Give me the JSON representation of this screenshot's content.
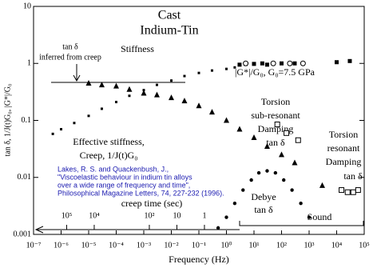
{
  "chart_data": {
    "type": "scatter",
    "title": [
      "Cast",
      "Indium-Tin"
    ],
    "xlabel": "Frequency (Hz)",
    "ylabel": "tan δ, 1/J(t)G₀, |G*|/G₀",
    "xscale": "log",
    "yscale": "log",
    "xlim": [
      1e-07,
      100000
    ],
    "ylim": [
      0.001,
      10
    ],
    "xticks": [
      {
        "value": 1e-07,
        "label": "10⁻⁷"
      },
      {
        "value": 1e-06,
        "label": "10⁻⁶"
      },
      {
        "value": 1e-05,
        "label": "10⁻⁵"
      },
      {
        "value": 0.0001,
        "label": "10⁻⁴"
      },
      {
        "value": 0.001,
        "label": "10⁻³"
      },
      {
        "value": 0.01,
        "label": "10⁻²"
      },
      {
        "value": 0.1,
        "label": "10⁻¹"
      },
      {
        "value": 1,
        "label": "10⁰"
      },
      {
        "value": 10,
        "label": "10¹"
      },
      {
        "value": 100,
        "label": "10²"
      },
      {
        "value": 1000,
        "label": "10³"
      },
      {
        "value": 10000,
        "label": "10⁴"
      },
      {
        "value": 100000,
        "label": "10⁵"
      }
    ],
    "yticks": [
      0.001,
      0.01,
      0.1,
      1,
      10
    ],
    "creep_time_axis": {
      "label": "creep time (sec)",
      "ticks": [
        {
          "value": 100000,
          "label": "10⁵"
        },
        {
          "value": 10000,
          "label": "10⁴"
        },
        {
          "value": 100,
          "label": "10²"
        },
        10,
        1
      ]
    },
    "annotations": [
      "tan δ",
      "inferred from creep",
      "Stiffness",
      "|G*|/G₀, G₀=7.5 GPa",
      "Torsion",
      "sub-resonant",
      "Damping",
      "tan δ",
      "Torsion",
      "resonant",
      "Damping",
      "tan δ",
      "Effective stiffness,",
      "Creep, 1/J(t)G₀",
      "Debye",
      "tan δ",
      "Sound"
    ],
    "citation": [
      "Lakes, R. S. and Quackenbush, J.,",
      "\"Viscoelastic behaviour in indium tin alloys",
      "over a wide range of frequency and time\",",
      "Philosophical Magazine Letters, 74, 227-232 (1996)."
    ],
    "series": [
      {
        "marker": "square",
        "size": 3,
        "color": "#000000",
        "x": [
          5e-07,
          1e-06,
          3e-06,
          1e-05,
          3e-05,
          0.0001,
          0.0003,
          0.001,
          0.003,
          0.01,
          0.03,
          0.1,
          0.3,
          1,
          2
        ],
        "values": [
          0.058,
          0.07,
          0.09,
          0.12,
          0.16,
          0.21,
          0.27,
          0.34,
          0.42,
          0.5,
          0.6,
          0.68,
          0.75,
          0.8,
          0.85
        ]
      },
      {
        "marker": "square",
        "size": 5,
        "color": "#000000",
        "x": [
          3,
          5,
          10,
          20,
          30,
          100,
          300,
          10000,
          30000
        ],
        "values": [
          0.95,
          0.98,
          0.98,
          1,
          0.95,
          1,
          1,
          1.05,
          1.1
        ]
      },
      {
        "marker": "circle",
        "size": 5,
        "color": "#000000",
        "x": [
          5,
          50,
          200,
          600
        ],
        "values": [
          1,
          1,
          1,
          1
        ]
      },
      {
        "marker": "triangle",
        "size": 6,
        "color": "#000000",
        "x": [
          1e-05,
          3e-05,
          0.0001,
          0.0003,
          0.001,
          0.003,
          0.01,
          0.03,
          0.1,
          0.3,
          1,
          3,
          10,
          30,
          100,
          300,
          3000
        ],
        "values": [
          0.45,
          0.42,
          0.4,
          0.35,
          0.3,
          0.28,
          0.25,
          0.22,
          0.18,
          0.14,
          0.1,
          0.07,
          0.05,
          0.035,
          0.025,
          0.018,
          0.0072
        ]
      },
      {
        "marker": "open-square",
        "size": 6,
        "color": "#000000",
        "x": [
          70,
          150,
          400
        ],
        "values": [
          0.085,
          0.06,
          0.045
        ]
      },
      {
        "marker": "open-square",
        "size": 6,
        "color": "#000000",
        "x": [
          15000,
          25000,
          40000,
          60000
        ],
        "values": [
          0.006,
          0.0055,
          0.0055,
          0.006
        ]
      },
      {
        "marker": "dot",
        "size": 2.2,
        "color": "#000000",
        "x": [
          0.5,
          1,
          2,
          4,
          8,
          15,
          30,
          60,
          120,
          240,
          500,
          1000
        ],
        "values": [
          0.0013,
          0.002,
          0.0035,
          0.006,
          0.009,
          0.012,
          0.013,
          0.012,
          0.009,
          0.006,
          0.0035,
          0.002
        ]
      }
    ]
  }
}
